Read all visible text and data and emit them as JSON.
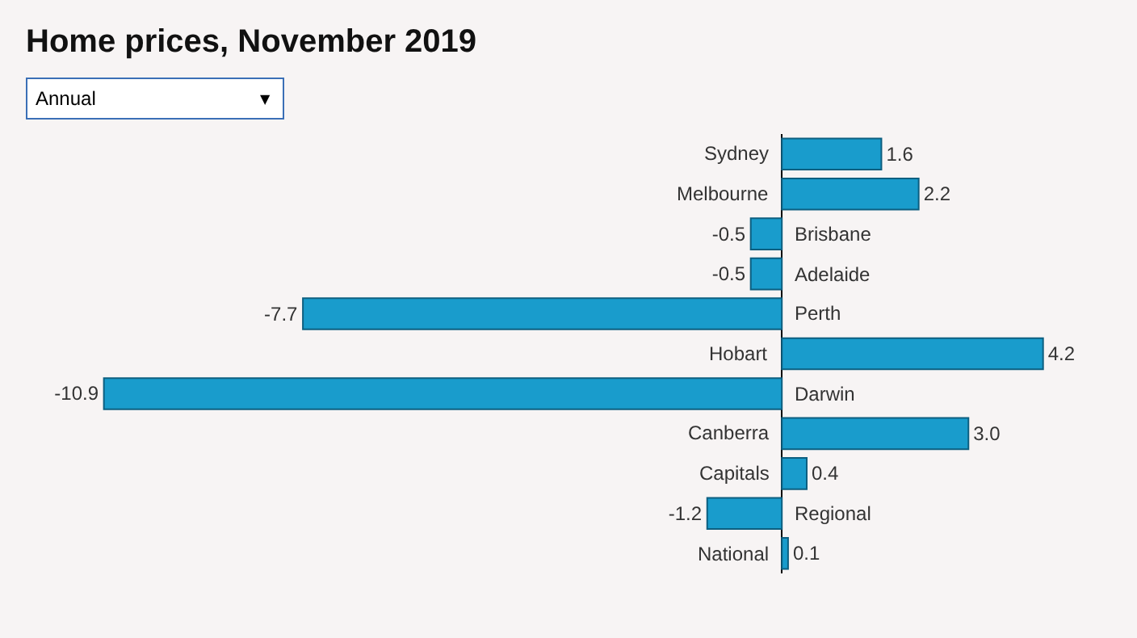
{
  "chart_data": {
    "type": "bar",
    "orientation": "horizontal",
    "title": "Home prices, November 2019",
    "annotations": [
      "Annual",
      "▼"
    ],
    "categories": [
      "Sydney",
      "Melbourne",
      "Brisbane",
      "Adelaide",
      "Perth",
      "Hobart",
      "Darwin",
      "Canberra",
      "Capitals",
      "Regional",
      "National"
    ],
    "values": [
      1.6,
      2.2,
      -0.5,
      -0.5,
      -7.7,
      4.2,
      -10.9,
      3.0,
      0.4,
      -1.2,
      0.1
    ],
    "value_labels": [
      "1.6",
      "2.2",
      "-0.5",
      "-0.5",
      "-7.7",
      "4.2",
      "-10.9",
      "3.0",
      "0.4",
      "-1.2",
      "0.1"
    ],
    "color": "#199ccc",
    "xlim": [
      -12.57,
      5.71
    ],
    "grid": false,
    "legend": false
  }
}
